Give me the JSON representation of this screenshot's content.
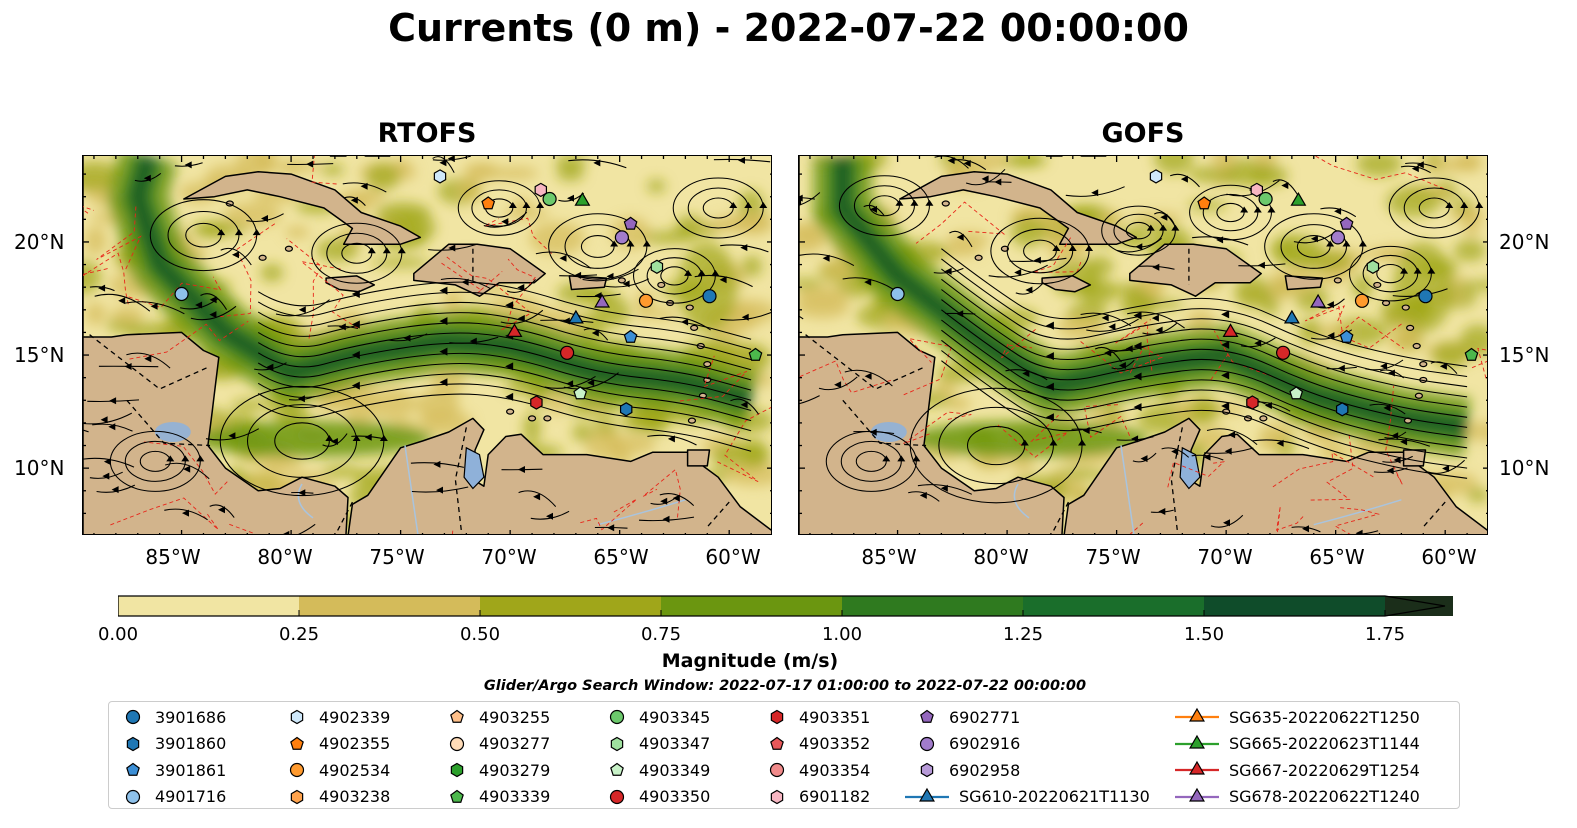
{
  "title": "Currents (0 m) - 2022-07-22 00:00:00",
  "panels": [
    {
      "title": "RTOFS",
      "model": "rtofs"
    },
    {
      "title": "GOFS",
      "model": "gofs"
    }
  ],
  "map": {
    "lon_range": [
      -89.5,
      -58.0
    ],
    "lat_range": [
      7.0,
      23.8
    ],
    "lat_ticks": [
      "20°N",
      "15°N",
      "10°N"
    ],
    "lon_ticks": [
      "85°W",
      "80°W",
      "75°W",
      "70°W",
      "65°W",
      "60°W"
    ],
    "land_color": "#d2b48c",
    "lake_color": "#8fb1d9"
  },
  "colorbar": {
    "label": "Magnitude (m/s)",
    "range": [
      0.0,
      1.75
    ],
    "ticks": [
      "0.00",
      "0.25",
      "0.50",
      "0.75",
      "1.00",
      "1.25",
      "1.50",
      "1.75"
    ],
    "colors": [
      "#f1e5a3",
      "#d4bb5a",
      "#a0a61a",
      "#6b9610",
      "#2f7a1f",
      "#1a6e2b",
      "#0f4c2a",
      "#1b2e1a"
    ],
    "extend": "max"
  },
  "search_window": "Glider/Argo Search Window: 2022-07-17 01:00:00 to 2022-07-22 00:00:00",
  "legend": {
    "columns": [
      [
        {
          "label": "3901686",
          "marker": "circle",
          "color": "#1f77b4"
        },
        {
          "label": "3901860",
          "marker": "hexagon",
          "color": "#1f77b4"
        },
        {
          "label": "3901861",
          "marker": "pentagon",
          "color": "#3c8fd6"
        },
        {
          "label": "4901716",
          "marker": "circle",
          "color": "#8ec1ea"
        }
      ],
      [
        {
          "label": "4902339",
          "marker": "hexagon",
          "color": "#cfe8fa"
        },
        {
          "label": "4902355",
          "marker": "pentagon",
          "color": "#ff7f0e"
        },
        {
          "label": "4902534",
          "marker": "circle",
          "color": "#ff9a2e"
        },
        {
          "label": "4903238",
          "marker": "hexagon",
          "color": "#ffa34d"
        }
      ],
      [
        {
          "label": "4903255",
          "marker": "pentagon",
          "color": "#ffc08a"
        },
        {
          "label": "4903277",
          "marker": "circle",
          "color": "#ffdcb8"
        },
        {
          "label": "4903279",
          "marker": "hexagon",
          "color": "#2ca02c"
        },
        {
          "label": "4903339",
          "marker": "pentagon",
          "color": "#4cb84c"
        }
      ],
      [
        {
          "label": "4903345",
          "marker": "circle",
          "color": "#6cc96c"
        },
        {
          "label": "4903347",
          "marker": "hexagon",
          "color": "#9fe09f"
        },
        {
          "label": "4903349",
          "marker": "pentagon",
          "color": "#c8f2c8"
        },
        {
          "label": "4903350",
          "marker": "circle",
          "color": "#d62728"
        }
      ],
      [
        {
          "label": "4903351",
          "marker": "hexagon",
          "color": "#d62728"
        },
        {
          "label": "4903352",
          "marker": "pentagon",
          "color": "#e8585a"
        },
        {
          "label": "4903354",
          "marker": "circle",
          "color": "#f08a8a"
        },
        {
          "label": "6901182",
          "marker": "hexagon",
          "color": "#f7b6c2"
        }
      ],
      [
        {
          "label": "6902771",
          "marker": "pentagon",
          "color": "#9467bd"
        },
        {
          "label": "6902916",
          "marker": "circle",
          "color": "#a27ccb"
        },
        {
          "label": "6902958",
          "marker": "hexagon",
          "color": "#b79ad8"
        },
        {
          "label": "SG610-20220621T1130",
          "marker": "triangle-line",
          "color": "#1f77b4"
        }
      ],
      [
        {
          "label": "SG635-20220622T1250",
          "marker": "triangle-line",
          "color": "#ff7f0e"
        },
        {
          "label": "SG665-20220623T1144",
          "marker": "triangle-line",
          "color": "#2ca02c"
        },
        {
          "label": "SG667-20220629T1254",
          "marker": "triangle-line",
          "color": "#d62728"
        },
        {
          "label": "SG678-20220622T1240",
          "marker": "triangle-line",
          "color": "#9467bd"
        }
      ]
    ]
  },
  "platforms": [
    {
      "id": "3901686",
      "lon": -60.9,
      "lat": 17.6
    },
    {
      "id": "3901860",
      "lon": -64.7,
      "lat": 12.6
    },
    {
      "id": "3901861",
      "lon": -64.5,
      "lat": 15.8
    },
    {
      "id": "4901716",
      "lon": -85.0,
      "lat": 17.7
    },
    {
      "id": "4902339",
      "lon": -73.2,
      "lat": 22.9
    },
    {
      "id": "4902355",
      "lon": -71.0,
      "lat": 21.7
    },
    {
      "id": "4902534",
      "lon": -63.8,
      "lat": 17.4
    },
    {
      "id": "4903339",
      "lon": -58.8,
      "lat": 15.0
    },
    {
      "id": "4903345",
      "lon": -68.2,
      "lat": 21.9
    },
    {
      "id": "4903347",
      "lon": -63.3,
      "lat": 18.9
    },
    {
      "id": "4903349",
      "lon": -66.8,
      "lat": 13.3
    },
    {
      "id": "4903350",
      "lon": -67.4,
      "lat": 15.1
    },
    {
      "id": "4903351",
      "lon": -68.8,
      "lat": 12.9
    },
    {
      "id": "6901182",
      "lon": -68.6,
      "lat": 22.3
    },
    {
      "id": "6902771",
      "lon": -64.5,
      "lat": 20.8
    },
    {
      "id": "6902916",
      "lon": -64.9,
      "lat": 20.2
    },
    {
      "id": "SG610-20220621T1130",
      "lon": -67.0,
      "lat": 16.6
    },
    {
      "id": "SG665-20220623T1144",
      "lon": -66.7,
      "lat": 21.8
    },
    {
      "id": "SG667-20220629T1254",
      "lon": -69.8,
      "lat": 16.0
    },
    {
      "id": "SG678-20220622T1240",
      "lon": -65.8,
      "lat": 17.3
    }
  ]
}
